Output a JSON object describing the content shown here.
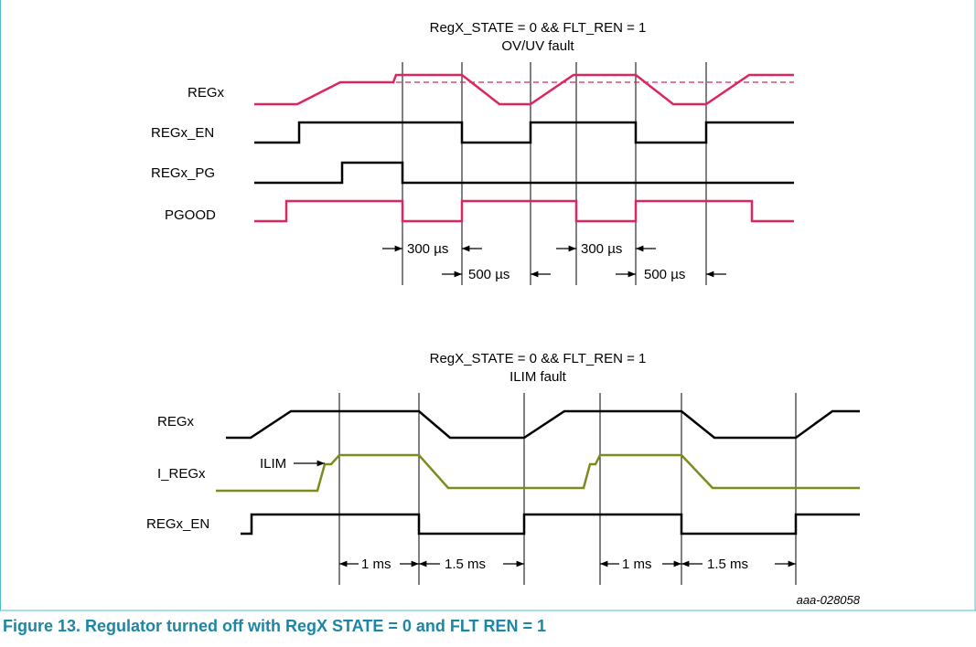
{
  "section1": {
    "title_line1": "RegX_STATE = 0 && FLT_REN = 1",
    "title_line2": "OV/UV fault",
    "signals": [
      "REGx",
      "REGx_EN",
      "REGx_PG",
      "PGOOD"
    ],
    "timings": [
      "300 µs",
      "500 µs",
      "300 µs",
      "500 µs"
    ]
  },
  "section2": {
    "title_line1": "RegX_STATE = 0 && FLT_REN = 1",
    "title_line2": "ILIM fault",
    "signals": [
      "REGx",
      "I_REGx",
      "REGx_EN"
    ],
    "ilim_label": "ILIM",
    "timings": [
      "1 ms",
      "1.5 ms",
      "1 ms",
      "1.5 ms"
    ]
  },
  "reference": "aaa-028058",
  "caption": "Figure 13.  Regulator turned off with RegX  STATE = 0 and FLT  REN = 1",
  "colors": {
    "pink": "#e0245e",
    "olive": "#7f8a1c",
    "black": "#000000",
    "frame": "#4bbfd0",
    "caption": "#1d86a6"
  }
}
